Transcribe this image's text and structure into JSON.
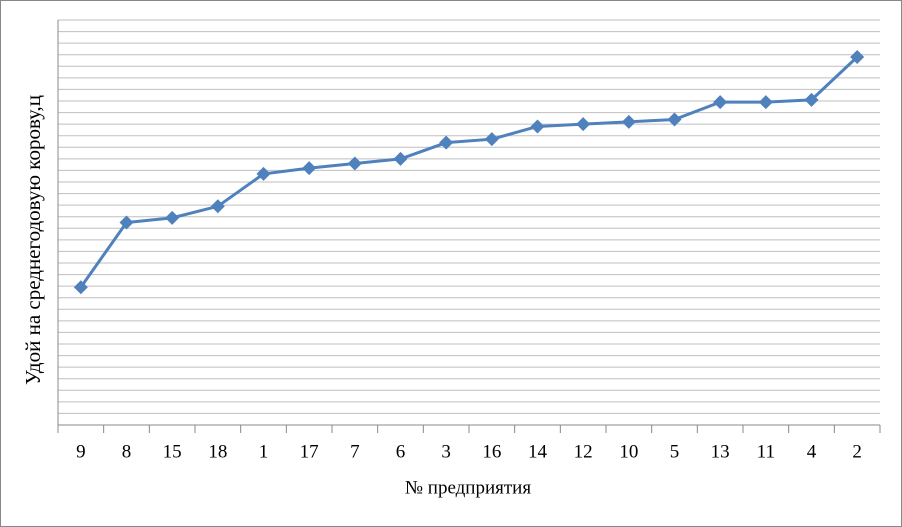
{
  "chart_data": {
    "type": "line",
    "x_label": "№ предприятия",
    "y_label": "Удой на среднегодовую корову,ц",
    "categories": [
      "9",
      "8",
      "15",
      "18",
      "1",
      "17",
      "7",
      "6",
      "3",
      "16",
      "14",
      "12",
      "10",
      "5",
      "13",
      "11",
      "4",
      "2"
    ],
    "series": [
      {
        "color": "#4f81bd",
        "values": [
          11.9,
          17.5,
          17.9,
          18.9,
          21.7,
          22.2,
          22.6,
          23.0,
          24.4,
          24.7,
          25.8,
          26.0,
          26.2,
          26.4,
          27.9,
          27.9,
          28.1,
          31.8
        ]
      }
    ],
    "ylim": [
      0,
      35
    ],
    "yticks": [
      0,
      1,
      2,
      3,
      4,
      5,
      6,
      7,
      8,
      9,
      10,
      11,
      12,
      13,
      14,
      15,
      16,
      17,
      18,
      19,
      20,
      21,
      22,
      23,
      24,
      25,
      26,
      27,
      28,
      29,
      30,
      31,
      32,
      33,
      34,
      35
    ],
    "grid": true
  }
}
